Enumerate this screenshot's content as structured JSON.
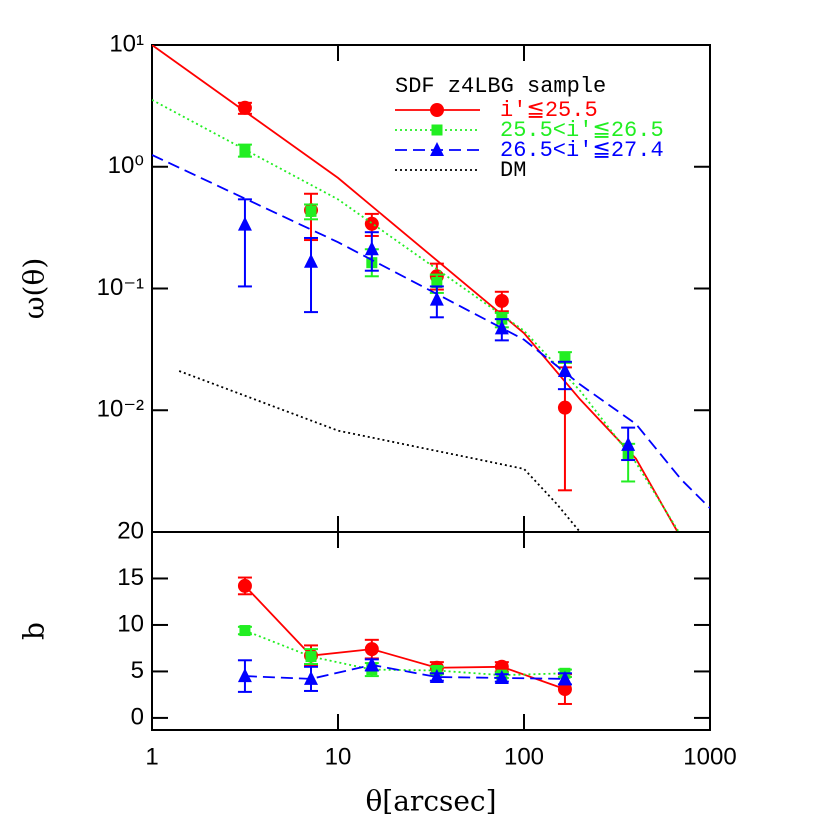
{
  "chart_data": [
    {
      "type": "line",
      "ylabel": "ω(θ)",
      "xlog": true,
      "ylog": true,
      "xlim": [
        1,
        1000
      ],
      "ylim": [
        0.001,
        10
      ],
      "yticks": [
        {
          "value": 10,
          "label": "10¹"
        },
        {
          "value": 1,
          "label": "10⁰"
        },
        {
          "value": 0.1,
          "label": "10⁻¹"
        },
        {
          "value": 0.01,
          "label": "10⁻²"
        }
      ],
      "legend_title": "SDF z4LBG sample",
      "legend": "upper right",
      "x": [
        3.16,
        7.16,
        15.2,
        34,
        76,
        166,
        363
      ],
      "series": [
        {
          "name": "i'≦25.5",
          "color": "#ff0000",
          "marker": "circle",
          "linestyle": "solid",
          "values": [
            3.05,
            0.44,
            0.34,
            0.126,
            0.079,
            0.0105,
            null
          ],
          "lower": [
            2.72,
            0.25,
            0.27,
            0.098,
            0.065,
            0.0022,
            null
          ],
          "upper": [
            3.35,
            0.6,
            0.41,
            0.16,
            0.094,
            0.0225,
            null
          ],
          "model_x": [
            1,
            10,
            100,
            200,
            400,
            670
          ],
          "model_values": [
            10,
            0.81,
            0.043,
            0.0123,
            0.004,
            0.001
          ]
        },
        {
          "name": "25.5<i'≦26.5",
          "color": "#22ee22",
          "marker": "square",
          "linestyle": "dotted",
          "values": [
            1.35,
            0.43,
            0.163,
            0.112,
            0.056,
            0.027,
            0.0044
          ],
          "lower": [
            1.21,
            0.37,
            0.126,
            0.092,
            0.048,
            0.0245,
            0.0026
          ],
          "upper": [
            1.52,
            0.49,
            0.21,
            0.13,
            0.063,
            0.03,
            0.0053
          ],
          "model_x": [
            1,
            10,
            100,
            200,
            400,
            680
          ],
          "model_values": [
            3.54,
            0.54,
            0.045,
            0.0145,
            0.0037,
            0.001
          ]
        },
        {
          "name": "26.5<i'≦27.4",
          "color": "#0000ff",
          "marker": "triangle",
          "linestyle": "dashed",
          "values": [
            0.335,
            0.166,
            0.21,
            0.081,
            0.047,
            0.021,
            0.0052
          ],
          "lower": [
            0.104,
            0.064,
            0.14,
            0.058,
            0.0375,
            0.0149,
            0.0039
          ],
          "upper": [
            0.54,
            0.26,
            0.29,
            0.104,
            0.056,
            0.025,
            0.0072
          ],
          "model_x": [
            1,
            10,
            100,
            200,
            400,
            700,
            1000
          ],
          "model_values": [
            1.25,
            0.24,
            0.038,
            0.0163,
            0.0077,
            0.0027,
            0.00157
          ]
        },
        {
          "name": "DM",
          "color": "#000000",
          "marker": "none",
          "linestyle": "dotted",
          "model_x": [
            1.4,
            10,
            100,
            150,
            200
          ],
          "model_values": [
            0.021,
            0.0068,
            0.0033,
            0.0017,
            0.001
          ]
        }
      ]
    },
    {
      "type": "line",
      "ylabel": "b",
      "xlabel": "θ[arcsec]",
      "xlog": true,
      "xlim": [
        1,
        1000
      ],
      "ylim": [
        -1.3,
        20
      ],
      "yticks": [
        0,
        5,
        10,
        15,
        20
      ],
      "xticks": [
        1,
        10,
        100,
        1000
      ],
      "x": [
        3.16,
        7.16,
        15.2,
        34,
        76,
        166
      ],
      "series": [
        {
          "color": "#ff0000",
          "marker": "circle",
          "linestyle": "solid",
          "values": [
            14.2,
            6.7,
            7.4,
            5.4,
            5.5,
            3.1
          ],
          "errors": [
            0.9,
            1.1,
            1.0,
            0.6,
            0.5,
            1.6
          ]
        },
        {
          "color": "#22ee22",
          "marker": "square",
          "linestyle": "dotted",
          "values": [
            9.4,
            6.6,
            5.2,
            5.1,
            4.6,
            4.8
          ],
          "errors": [
            0.4,
            0.8,
            0.7,
            0.4,
            0.3,
            0.4
          ]
        },
        {
          "color": "#0000ff",
          "marker": "triangle",
          "linestyle": "dashed",
          "values": [
            4.5,
            4.2,
            5.7,
            4.4,
            4.3,
            4.2
          ],
          "errors": [
            1.7,
            1.3,
            0.6,
            0.4,
            0.4,
            0.6
          ]
        }
      ]
    }
  ]
}
